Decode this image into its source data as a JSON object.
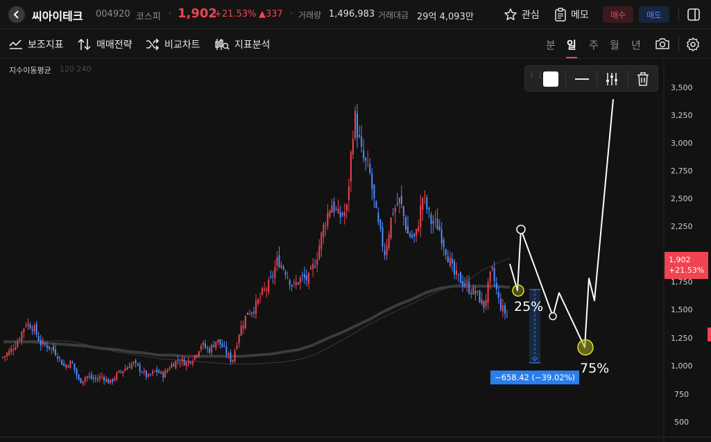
{
  "header": {
    "back_icon": "chevron-left-icon",
    "stock_name": "씨아이테크",
    "stock_code": "004920",
    "market": "코스피",
    "price": "1,902",
    "change_pct": "+21.53%",
    "change_abs": "▲337",
    "volume_label": "거래량",
    "volume": "1,496,983",
    "amount_label": "거래대금",
    "amount": "29억 4,093만",
    "favorite_label": "관심",
    "memo_label": "메모",
    "buy_label": "매수",
    "sell_label": "매도",
    "up_color": "#f04452",
    "down_color": "#4c8dff"
  },
  "toolbar": {
    "indicators_label": "보조지표",
    "strategy_label": "매매전략",
    "compare_label": "비교차트",
    "analysis_label": "지표분석",
    "periods": [
      "분",
      "일",
      "주",
      "월",
      "년"
    ],
    "active_period": "일"
  },
  "chart": {
    "ma_label": "지수이동평균",
    "ma_params": "120 240",
    "y_axis_ticks": [
      "3,500",
      "3,250",
      "3,000",
      "2,750",
      "2,500",
      "2,250",
      "2,000",
      "1,750",
      "1,500",
      "1,250",
      "1,000",
      "750",
      "500"
    ],
    "price_tag_value": "1,902",
    "price_tag_pct": "+21.53%",
    "annotation_25": "25%",
    "annotation_75": "75%",
    "measure_label": "−658.42  (−39.02%)"
  },
  "chart_data": {
    "type": "candlestick",
    "title": "",
    "ylim": [
      400,
      3650
    ],
    "up_color": "#f04452",
    "down_color": "#4c8dff",
    "close_path": [
      1080,
      1140,
      1230,
      1390,
      1350,
      1200,
      1180,
      1120,
      1000,
      1040,
      860,
      910,
      880,
      910,
      850,
      930,
      980,
      1030,
      970,
      900,
      960,
      920,
      1010,
      1060,
      1030,
      1080,
      1200,
      1140,
      1240,
      1150,
      1040,
      1320,
      1480,
      1530,
      1660,
      1750,
      1960,
      1860,
      1710,
      1790,
      1780,
      1960,
      2260,
      2470,
      2340,
      2400,
      3270,
      2890,
      2740,
      2300,
      2020,
      2390,
      2490,
      2190,
      2140,
      2540,
      2300,
      2260,
      2050,
      1830,
      1770,
      1700,
      1650,
      1540,
      1870,
      1560,
      1450
    ],
    "ema_120_path": [
      1230,
      1230,
      1230,
      1230,
      1230,
      1220,
      1190,
      1160,
      1130,
      1110,
      1090,
      1070,
      1060,
      1050,
      1040,
      1030,
      1020,
      1020,
      1020,
      1030,
      1040,
      1060,
      1100,
      1160,
      1230,
      1300,
      1380,
      1440,
      1500,
      1560,
      1620,
      1680,
      1720,
      1770,
      1860,
      1920,
      1970
    ],
    "ema_240_path": [
      1220,
      1220,
      1220,
      1210,
      1200,
      1190,
      1180,
      1160,
      1150,
      1130,
      1120,
      1100,
      1100,
      1090,
      1090,
      1090,
      1090,
      1090,
      1100,
      1110,
      1130,
      1150,
      1190,
      1250,
      1300,
      1360,
      1420,
      1490,
      1550,
      1600,
      1660,
      1700,
      1720,
      1720,
      1720,
      1720,
      1710
    ],
    "last_close": 1902,
    "drawn_path": [
      1920,
      1680,
      2230,
      1450,
      1660,
      1170,
      1790,
      1590,
      3400
    ],
    "measure_from": 1690,
    "measure_to": 1030
  }
}
